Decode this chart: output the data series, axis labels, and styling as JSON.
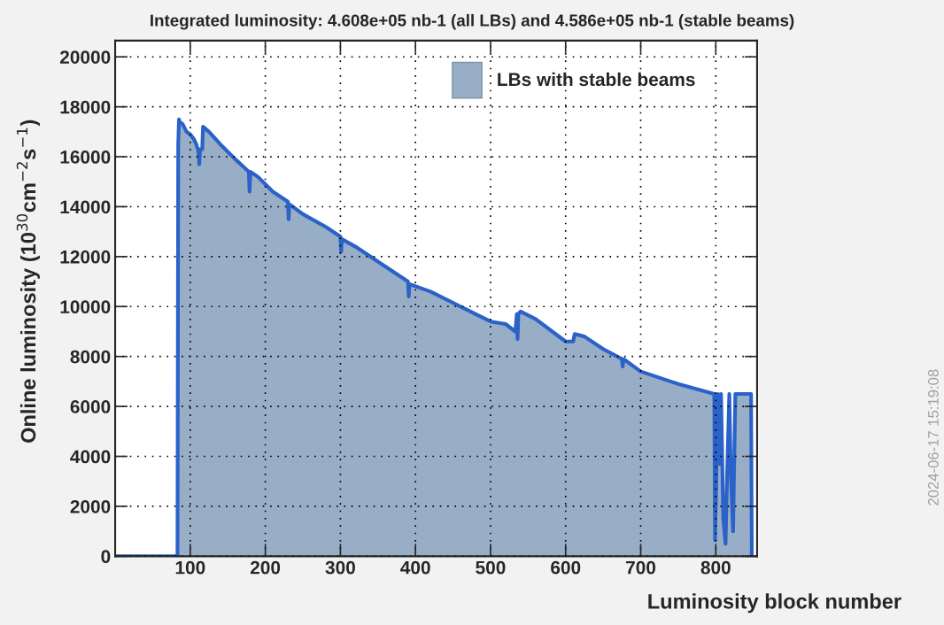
{
  "chart_data": {
    "type": "area",
    "title": "Integrated luminosity: 4.608e+05 nb-1 (all LBs) and 4.586e+05 nb-1 (stable beams)",
    "xlabel": "Luminosity block number",
    "ylabel": "Online luminosity (10$^{30}$cm$^{−2}$s$^{−1}$)",
    "x": [
      0,
      83,
      84,
      85,
      86,
      90,
      95,
      100,
      105,
      108,
      111,
      112,
      113,
      116,
      117,
      125,
      140,
      160,
      178,
      179,
      180,
      190,
      210,
      230,
      231,
      232,
      250,
      280,
      300,
      301,
      302,
      320,
      350,
      390,
      391,
      392,
      420,
      460,
      500,
      520,
      533,
      535,
      536,
      537,
      540,
      560,
      600,
      610,
      612,
      625,
      650,
      675,
      676,
      677,
      700,
      750,
      798,
      799,
      803,
      805,
      807,
      810,
      813,
      815,
      818,
      820,
      823,
      826,
      829,
      840,
      847,
      848
    ],
    "series": [
      {
        "name": "LBs with stable beams",
        "color": "#98aec6",
        "values": [
          null,
          null,
          16500,
          17500,
          17400,
          17300,
          17000,
          16900,
          16700,
          16500,
          16200,
          15700,
          16300,
          16300,
          17200,
          17000,
          16500,
          15900,
          15400,
          14600,
          15400,
          15200,
          14600,
          14200,
          13500,
          14100,
          13700,
          13200,
          12800,
          12200,
          12700,
          12400,
          11800,
          11000,
          10400,
          10900,
          10600,
          10000,
          9400,
          9300,
          9000,
          9700,
          8700,
          9700,
          9800,
          9500,
          8600,
          8600,
          8900,
          8800,
          8300,
          7900,
          7600,
          7900,
          7400,
          6900,
          6500,
          650,
          6500,
          3700,
          6500,
          1500,
          500,
          3200,
          6500,
          3300,
          1000,
          6500,
          6500,
          6500,
          6500,
          0
        ]
      },
      {
        "type": "line",
        "color": "#2a62c9",
        "values": [
          0,
          0,
          16500,
          17500,
          17400,
          17300,
          17000,
          16900,
          16700,
          16500,
          16200,
          15700,
          16300,
          16300,
          17200,
          17000,
          16500,
          15900,
          15400,
          14600,
          15400,
          15200,
          14600,
          14200,
          13500,
          14100,
          13700,
          13200,
          12800,
          12200,
          12700,
          12400,
          11800,
          11000,
          10400,
          10900,
          10600,
          10000,
          9400,
          9300,
          9000,
          9700,
          8700,
          9700,
          9800,
          9500,
          8600,
          8600,
          8900,
          8800,
          8300,
          7900,
          7600,
          7900,
          7400,
          6900,
          6500,
          650,
          6500,
          3700,
          6500,
          1500,
          500,
          3200,
          6500,
          3300,
          1000,
          6500,
          6500,
          6500,
          6500,
          0
        ]
      }
    ],
    "xlim": [
      0,
      855
    ],
    "xticks": [
      100,
      200,
      300,
      400,
      500,
      600,
      700,
      800
    ],
    "ylim": [
      0,
      20650
    ],
    "yticks": [
      0,
      2000,
      4000,
      6000,
      8000,
      10000,
      12000,
      14000,
      16000,
      18000,
      20000
    ],
    "grid": true,
    "legend": "top right",
    "annotations": [
      "2024-06-17 15:19:08"
    ]
  }
}
